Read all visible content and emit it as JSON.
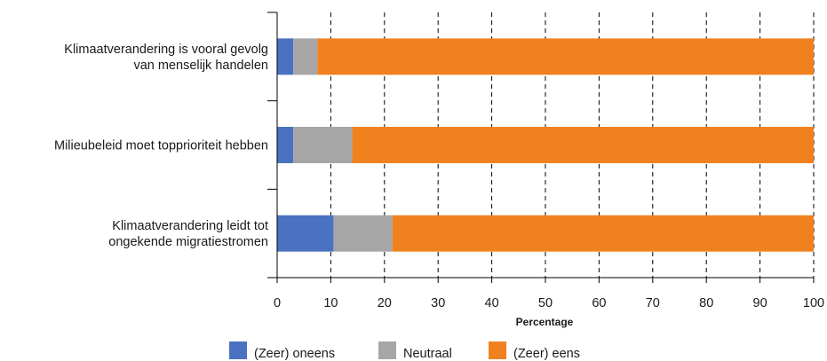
{
  "chart_data": {
    "type": "bar",
    "orientation": "horizontal",
    "stacked": true,
    "categories": [
      [
        "Klimaatverandering is vooral gevolg",
        "van menselijk handelen"
      ],
      [
        "Milieubeleid moet topprioriteit hebben"
      ],
      [
        "Klimaatverandering leidt tot",
        "ongekende migratiestromen"
      ]
    ],
    "series": [
      {
        "name": "(Zeer) oneens",
        "color": "#4a72c0",
        "values": [
          3,
          3,
          10.5
        ]
      },
      {
        "name": "Neutraal",
        "color": "#a6a6a6",
        "values": [
          4.5,
          11,
          11
        ]
      },
      {
        "name": "(Zeer) eens",
        "color": "#f0811f",
        "values": [
          92.5,
          86,
          78.5
        ]
      }
    ],
    "xlabel": "Percentage",
    "ylabel": "",
    "xlim": [
      0,
      100
    ],
    "xticks": [
      "0",
      "10",
      "20",
      "30",
      "40",
      "50",
      "60",
      "70",
      "80",
      "90",
      "100"
    ],
    "grid": "vertical-dashed",
    "legend_position": "bottom"
  }
}
